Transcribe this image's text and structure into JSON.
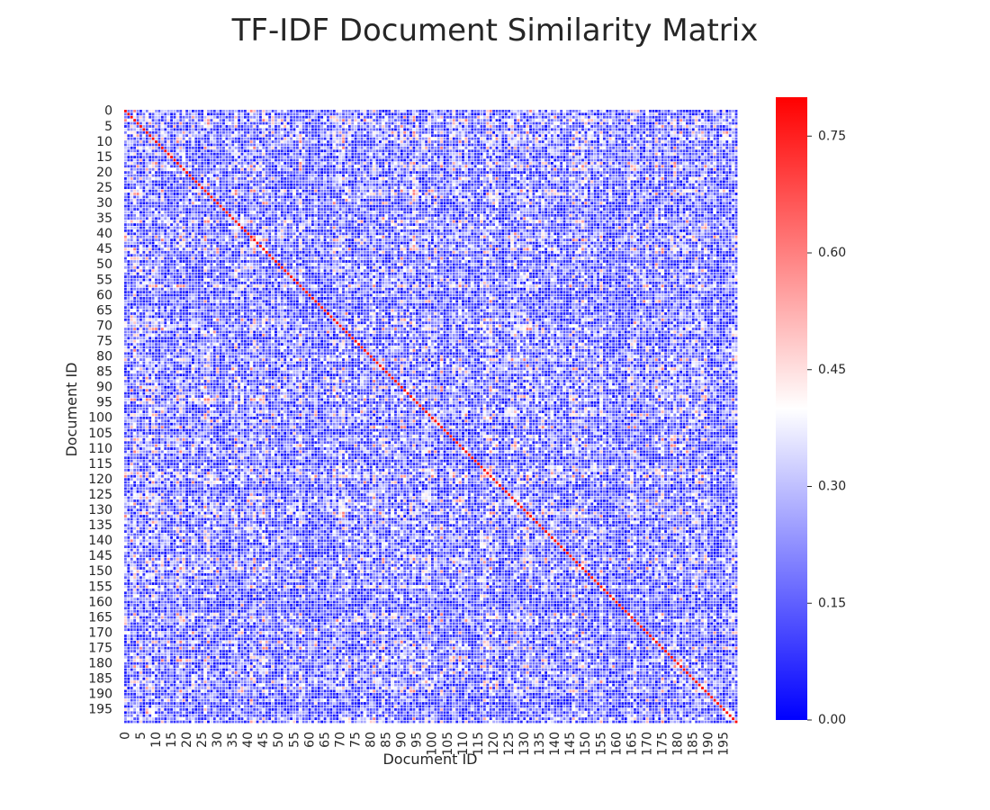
{
  "chart_data": {
    "type": "heatmap",
    "title": "TF-IDF Document Similarity Matrix",
    "xlabel": "Document ID",
    "ylabel": "Document ID",
    "n_documents": 200,
    "tick_step": 5,
    "x_tick_labels": [
      "0",
      "5",
      "10",
      "15",
      "20",
      "25",
      "30",
      "35",
      "40",
      "45",
      "50",
      "55",
      "60",
      "65",
      "70",
      "75",
      "80",
      "85",
      "90",
      "95",
      "100",
      "105",
      "110",
      "115",
      "120",
      "125",
      "130",
      "135",
      "140",
      "145",
      "150",
      "155",
      "160",
      "165",
      "170",
      "175",
      "180",
      "185",
      "190",
      "195"
    ],
    "y_tick_labels": [
      "0",
      "5",
      "10",
      "15",
      "20",
      "25",
      "30",
      "35",
      "40",
      "45",
      "50",
      "55",
      "60",
      "65",
      "70",
      "75",
      "80",
      "85",
      "90",
      "95",
      "100",
      "105",
      "110",
      "115",
      "120",
      "125",
      "130",
      "135",
      "140",
      "145",
      "150",
      "155",
      "160",
      "165",
      "170",
      "175",
      "180",
      "185",
      "190",
      "195"
    ],
    "value_range": [
      0.0,
      0.8
    ],
    "diagonal_value": 0.8,
    "typical_offdiagonal_range": [
      0.0,
      0.6
    ],
    "colormap": [
      "#0000ff",
      "#ffffff",
      "#ff0000"
    ],
    "colorbar": {
      "ticks": [
        0.0,
        0.15,
        0.3,
        0.45,
        0.6,
        0.75
      ],
      "tick_labels": [
        "0.00",
        "0.15",
        "0.30",
        "0.45",
        "0.60",
        "0.75"
      ]
    },
    "gridlines": "white"
  }
}
